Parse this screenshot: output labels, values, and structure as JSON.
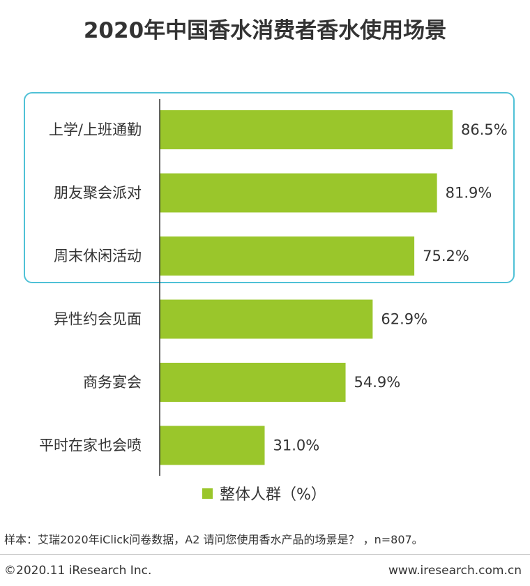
{
  "chart_data": {
    "type": "bar",
    "orientation": "horizontal",
    "title": "2020年中国香水消费者香水使用场景",
    "categories": [
      "上学/上班通勤",
      "朋友聚会派对",
      "周末休闲活动",
      "异性约会见面",
      "商务宴会",
      "平时在家也会喷"
    ],
    "series": [
      {
        "name": "整体人群（%）",
        "values": [
          86.5,
          81.9,
          75.2,
          62.9,
          54.9,
          31.0
        ],
        "labels": [
          "86.5%",
          "81.9%",
          "75.2%",
          "62.9%",
          "54.9%",
          "31.0%"
        ]
      }
    ],
    "xlim": [
      0,
      100
    ],
    "grid": false,
    "legend_position": "bottom",
    "highlighted_categories": [
      "上学/上班通勤",
      "朋友聚会派对",
      "周末休闲活动"
    ]
  },
  "colors": {
    "bar": "#9ac62b",
    "highlight_border": "#4fc1d6",
    "axis": "#333333",
    "text": "#333333"
  },
  "footer": {
    "note": "样本：艾瑞2020年iClick问卷数据，A2 请问您使用香水产品的场景是？ ，n=807。",
    "copyright": "©2020.11 iResearch Inc.",
    "website": "www.iresearch.com.cn"
  }
}
